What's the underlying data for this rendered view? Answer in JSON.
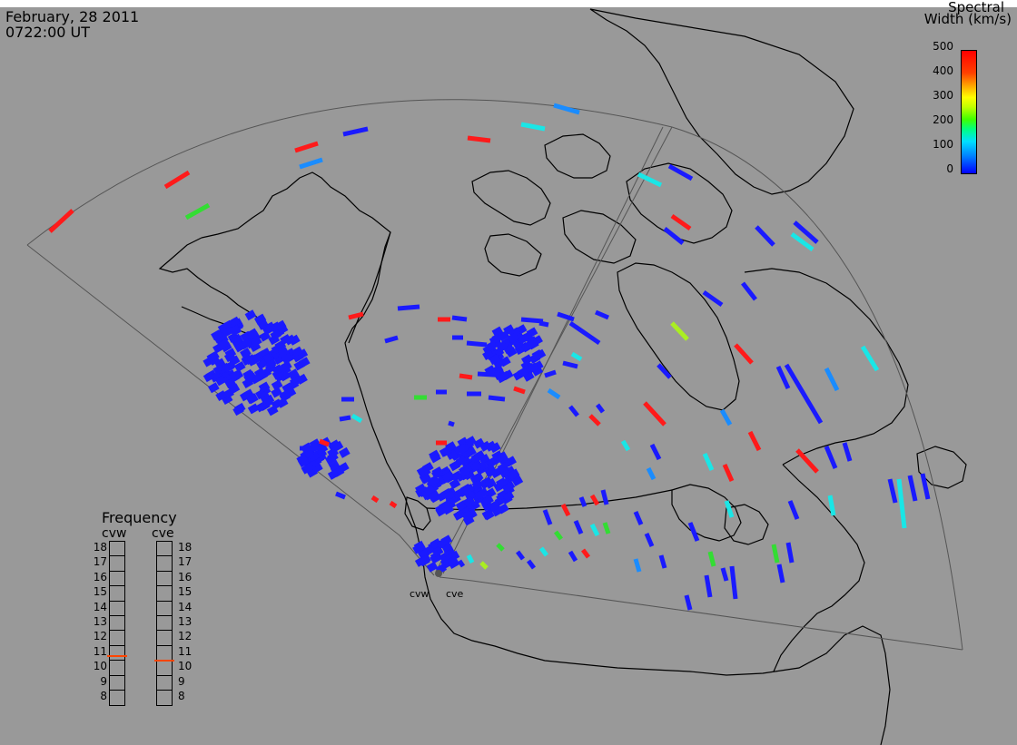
{
  "header": {
    "date": "February, 28 2011",
    "time": "0722:00 UT"
  },
  "colorbar": {
    "title_line1": "Spectral",
    "title_line2": "Width (km/s)",
    "ticks": [
      "500",
      "400",
      "300",
      "200",
      "100",
      "0"
    ],
    "range": [
      0,
      500
    ],
    "colors": [
      "#0000ff",
      "#00c0ff",
      "#00ff80",
      "#80ff00",
      "#ffff00",
      "#ff8000",
      "#ff0000"
    ]
  },
  "frequency_panel": {
    "title": "Frequency",
    "radars": [
      {
        "name": "cvw",
        "value_mhz": 10.8
      },
      {
        "name": "cve",
        "value_mhz": 10.5
      }
    ],
    "scale": [
      "18",
      "17",
      "16",
      "15",
      "14",
      "13",
      "12",
      "11",
      "10",
      "9",
      "8"
    ],
    "marker_color": "#ff4500"
  },
  "map": {
    "background": "#999999",
    "coastline_color": "#000000",
    "field_of_view_color": "#555555",
    "radar_sites": [
      "cvw",
      "cve"
    ]
  }
}
